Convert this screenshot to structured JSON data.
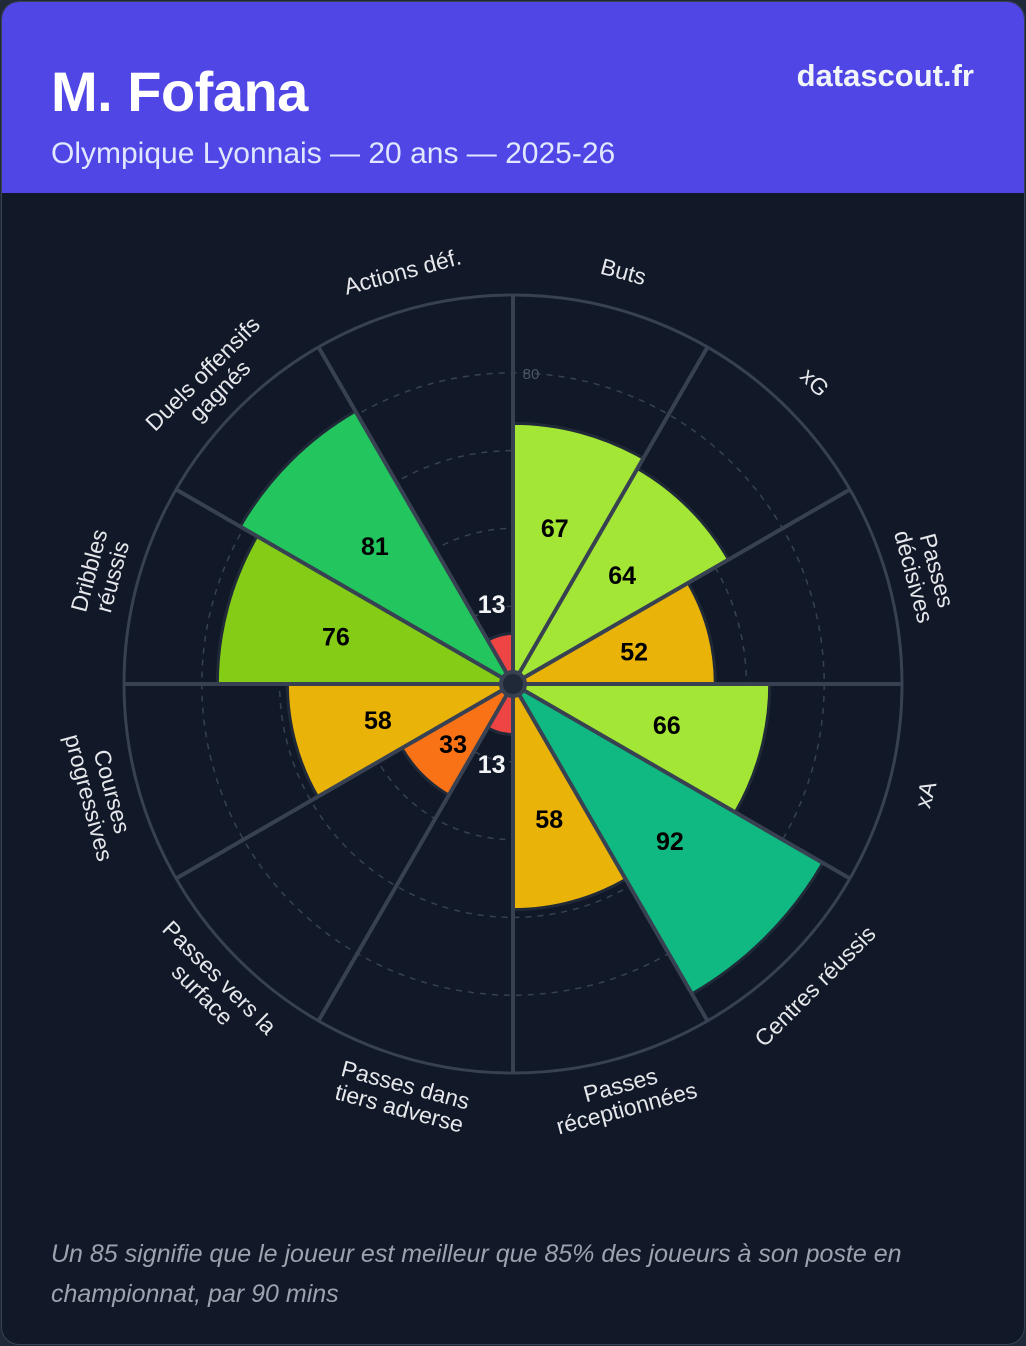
{
  "header": {
    "player_name": "M. Fofana",
    "subtitle": "Olympique Lyonnais — 20 ans — 2025-26",
    "brand": "datascout.fr"
  },
  "colors": {
    "header_bg": "#4f46e5",
    "background": "#111827",
    "grid": "#374151",
    "label": "#e5e7eb"
  },
  "chart_data": {
    "type": "polar-bar",
    "title": "M. Fofana",
    "subtitle": "Olympique Lyonnais — 20 ans — 2025-26",
    "range": [
      0,
      100
    ],
    "grid_rings": [
      20,
      40,
      60,
      80
    ],
    "ring_labels": [
      "80"
    ],
    "categories": [
      "Buts",
      "xG",
      "Passes décisives",
      "xA",
      "Centres réussis",
      "Passes réceptionnées",
      "Passes dans tiers adverse",
      "Passes vers la surface",
      "Courses progressives",
      "Dribbles réussis",
      "Duels offensifs gagnés",
      "Actions déf."
    ],
    "values": [
      67,
      64,
      52,
      66,
      92,
      58,
      13,
      33,
      58,
      76,
      81,
      13
    ],
    "slices": [
      {
        "label": "Buts",
        "lines": [
          "Buts"
        ],
        "value": 67,
        "color": "#a3e635"
      },
      {
        "label": "xG",
        "lines": [
          "xG"
        ],
        "value": 64,
        "color": "#a3e635"
      },
      {
        "label": "Passes décisives",
        "lines": [
          "Passes",
          "décisives"
        ],
        "value": 52,
        "color": "#eab308"
      },
      {
        "label": "xA",
        "lines": [
          "xA"
        ],
        "value": 66,
        "color": "#a3e635"
      },
      {
        "label": "Centres réussis",
        "lines": [
          "Centres réussis"
        ],
        "value": 92,
        "color": "#10b981"
      },
      {
        "label": "Passes réceptionnées",
        "lines": [
          "Passes",
          "réceptionnées"
        ],
        "value": 58,
        "color": "#eab308"
      },
      {
        "label": "Passes dans tiers adverse",
        "lines": [
          "Passes dans",
          "tiers adverse"
        ],
        "value": 13,
        "color": "#ef4444"
      },
      {
        "label": "Passes vers la surface",
        "lines": [
          "Passes vers la",
          "surface"
        ],
        "value": 33,
        "color": "#f97316"
      },
      {
        "label": "Courses progressives",
        "lines": [
          "Courses",
          "progressives"
        ],
        "value": 58,
        "color": "#eab308"
      },
      {
        "label": "Dribbles réussis",
        "lines": [
          "Dribbles",
          "réussis"
        ],
        "value": 76,
        "color": "#84cc16"
      },
      {
        "label": "Duels offensifs gagnés",
        "lines": [
          "Duels offensifs",
          "gagnés"
        ],
        "value": 81,
        "color": "#22c55e"
      },
      {
        "label": "Actions déf.",
        "lines": [
          "Actions déf."
        ],
        "value": 13,
        "color": "#ef4444"
      }
    ]
  },
  "footer": {
    "note": "Un 85 signifie que le joueur est meilleur que 85% des joueurs à son poste en championnat, par 90 mins"
  }
}
